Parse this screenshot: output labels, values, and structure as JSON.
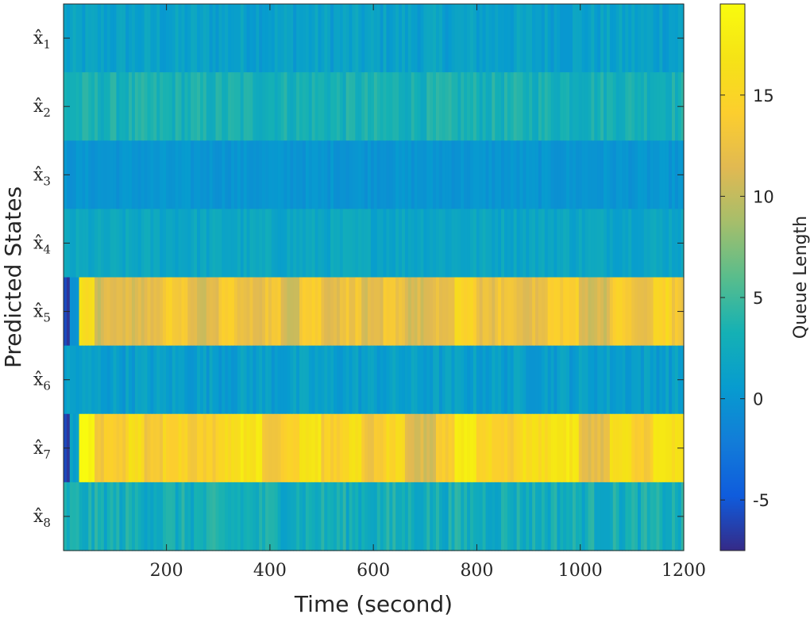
{
  "chart_data": {
    "type": "heatmap",
    "xlabel": "Time (second)",
    "ylabel": "Predicted States",
    "colorbar_label": "Queue Length",
    "xlim": [
      1,
      1200
    ],
    "x_ticks": [
      "200",
      "400",
      "600",
      "800",
      "1000",
      "1200"
    ],
    "x_tick_values": [
      200,
      400,
      600,
      800,
      1000,
      1200
    ],
    "row_labels": [
      {
        "base": "x̂",
        "sub": "1"
      },
      {
        "base": "x̂",
        "sub": "2"
      },
      {
        "base": "x̂",
        "sub": "3"
      },
      {
        "base": "x̂",
        "sub": "4"
      },
      {
        "base": "x̂",
        "sub": "5"
      },
      {
        "base": "x̂",
        "sub": "6"
      },
      {
        "base": "x̂",
        "sub": "7"
      },
      {
        "base": "x̂",
        "sub": "8"
      }
    ],
    "clim": [
      -7.5,
      19.5
    ],
    "colorbar_ticks": [
      "-5",
      "0",
      "5",
      "10",
      "15"
    ],
    "colorbar_tick_values": [
      -5,
      0,
      5,
      10,
      15
    ],
    "colormap": "parula",
    "rows": [
      {
        "state": "x̂1",
        "level_range": [
          0,
          2.5
        ],
        "mean": 1.2
      },
      {
        "state": "x̂2",
        "level_range": [
          2,
          4.5
        ],
        "mean": 3.2
      },
      {
        "state": "x̂3",
        "level_range": [
          -0.5,
          0.8
        ],
        "mean": 0.0
      },
      {
        "state": "x̂4",
        "level_range": [
          1,
          3
        ],
        "mean": 1.8
      },
      {
        "state": "x̂5",
        "level_range": [
          -7,
          17
        ],
        "mean": 12.5,
        "segments": [
          {
            "x": [
              1,
              15
            ],
            "value": -6.5
          },
          {
            "x": [
              15,
              30
            ],
            "value": 0.5
          },
          {
            "x": [
              30,
              60
            ],
            "value": 16
          },
          {
            "x": [
              60,
              80
            ],
            "value": 10
          },
          {
            "x": [
              80,
              130
            ],
            "value": 12
          },
          {
            "x": [
              130,
              160
            ],
            "value": 11
          },
          {
            "x": [
              160,
              195
            ],
            "value": 12
          },
          {
            "x": [
              195,
              240
            ],
            "value": 14
          },
          {
            "x": [
              240,
              300
            ],
            "value": 11
          },
          {
            "x": [
              300,
              340
            ],
            "value": 14
          },
          {
            "x": [
              340,
              385
            ],
            "value": 12
          },
          {
            "x": [
              385,
              420
            ],
            "value": 13
          },
          {
            "x": [
              420,
              460
            ],
            "value": 11
          },
          {
            "x": [
              460,
              500
            ],
            "value": 14
          },
          {
            "x": [
              500,
              540
            ],
            "value": 12
          },
          {
            "x": [
              540,
              580
            ],
            "value": 13
          },
          {
            "x": [
              580,
              620
            ],
            "value": 11
          },
          {
            "x": [
              620,
              660
            ],
            "value": 13
          },
          {
            "x": [
              660,
              720
            ],
            "value": 11
          },
          {
            "x": [
              720,
              760
            ],
            "value": 12
          },
          {
            "x": [
              760,
              800
            ],
            "value": 15
          },
          {
            "x": [
              800,
              840
            ],
            "value": 12
          },
          {
            "x": [
              840,
              880
            ],
            "value": 13
          },
          {
            "x": [
              880,
              940
            ],
            "value": 12
          },
          {
            "x": [
              940,
              1000
            ],
            "value": 14
          },
          {
            "x": [
              1000,
              1060
            ],
            "value": 11
          },
          {
            "x": [
              1060,
              1100
            ],
            "value": 14
          },
          {
            "x": [
              1100,
              1140
            ],
            "value": 12
          },
          {
            "x": [
              1140,
              1180
            ],
            "value": 15
          },
          {
            "x": [
              1180,
              1200
            ],
            "value": 13
          }
        ]
      },
      {
        "state": "x̂6",
        "level_range": [
          -0.5,
          2
        ],
        "mean": 1.0
      },
      {
        "state": "x̂7",
        "level_range": [
          -7,
          19
        ],
        "mean": 14.5,
        "segments": [
          {
            "x": [
              1,
              15
            ],
            "value": -6.0
          },
          {
            "x": [
              15,
              30
            ],
            "value": 1.0
          },
          {
            "x": [
              30,
              60
            ],
            "value": 19
          },
          {
            "x": [
              60,
              80
            ],
            "value": 13
          },
          {
            "x": [
              80,
              130
            ],
            "value": 14
          },
          {
            "x": [
              130,
              160
            ],
            "value": 16
          },
          {
            "x": [
              160,
              195
            ],
            "value": 13
          },
          {
            "x": [
              195,
              240
            ],
            "value": 15
          },
          {
            "x": [
              240,
              300
            ],
            "value": 14
          },
          {
            "x": [
              300,
              340
            ],
            "value": 16
          },
          {
            "x": [
              340,
              385
            ],
            "value": 17
          },
          {
            "x": [
              385,
              420
            ],
            "value": 13
          },
          {
            "x": [
              420,
              460
            ],
            "value": 15
          },
          {
            "x": [
              460,
              500
            ],
            "value": 17
          },
          {
            "x": [
              500,
              540
            ],
            "value": 14
          },
          {
            "x": [
              540,
              580
            ],
            "value": 16
          },
          {
            "x": [
              580,
              620
            ],
            "value": 13
          },
          {
            "x": [
              620,
              660
            ],
            "value": 15
          },
          {
            "x": [
              660,
              720
            ],
            "value": 11
          },
          {
            "x": [
              720,
              760
            ],
            "value": 14
          },
          {
            "x": [
              760,
              800
            ],
            "value": 18
          },
          {
            "x": [
              800,
              840
            ],
            "value": 15
          },
          {
            "x": [
              840,
              880
            ],
            "value": 14
          },
          {
            "x": [
              880,
              940
            ],
            "value": 16
          },
          {
            "x": [
              940,
              1000
            ],
            "value": 17
          },
          {
            "x": [
              1000,
              1060
            ],
            "value": 12
          },
          {
            "x": [
              1060,
              1100
            ],
            "value": 16
          },
          {
            "x": [
              1100,
              1140
            ],
            "value": 14
          },
          {
            "x": [
              1140,
              1180
            ],
            "value": 17
          },
          {
            "x": [
              1180,
              1200
            ],
            "value": 16
          }
        ]
      },
      {
        "state": "x̂8",
        "level_range": [
          1.5,
          5
        ],
        "mean": 2.8
      }
    ]
  }
}
